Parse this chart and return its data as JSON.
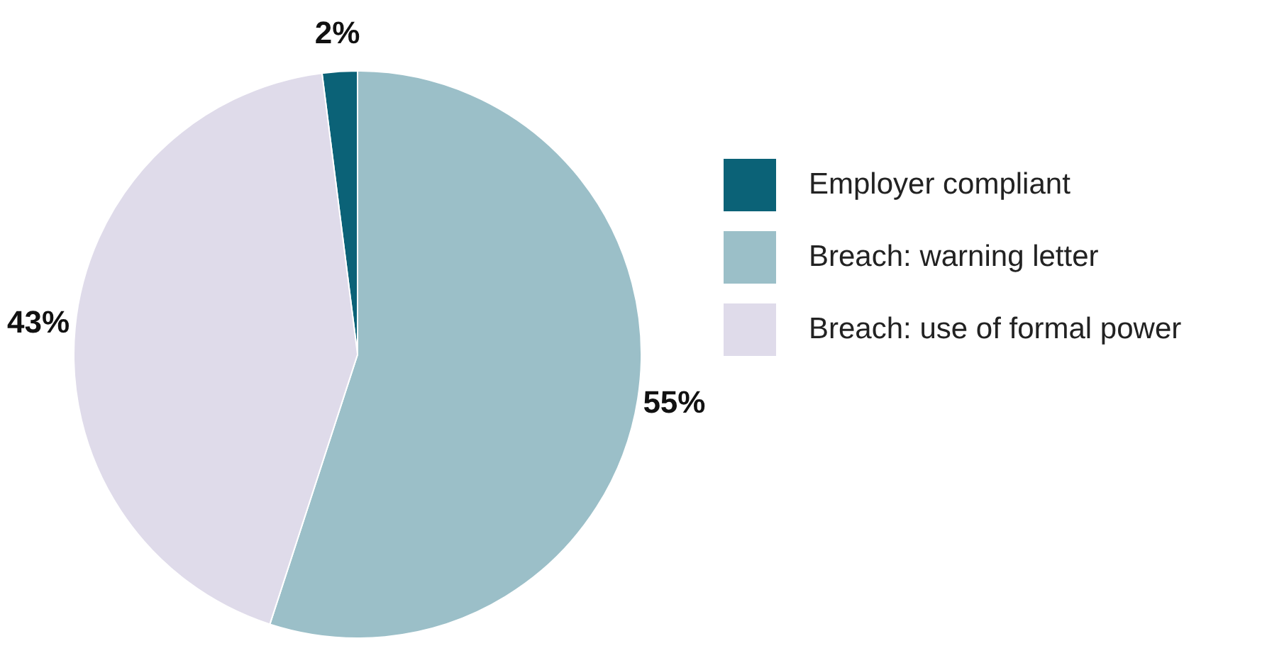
{
  "chart_data": {
    "type": "pie",
    "categories": [
      "Employer compliant",
      "Breach: warning letter",
      "Breach: use of formal power"
    ],
    "values": [
      2,
      55,
      43
    ],
    "colors": [
      "#0b6277",
      "#9bbfc8",
      "#dfdbea"
    ],
    "value_labels": [
      "2%",
      "55%",
      "43%"
    ],
    "legend": "right"
  }
}
